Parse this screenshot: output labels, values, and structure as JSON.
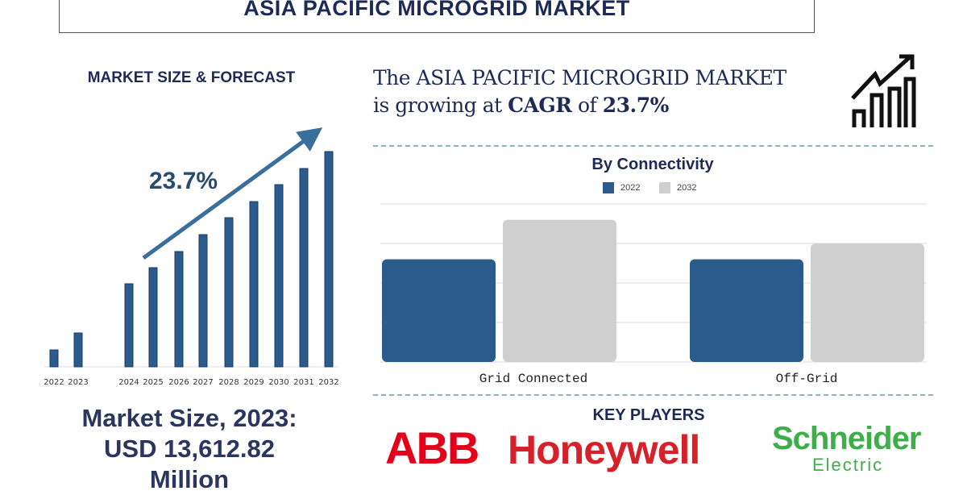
{
  "header": {
    "title": "ASIA PACIFIC MICROGRID MARKET"
  },
  "forecast": {
    "title": "MARKET SIZE & FORECAST",
    "growth_label": "23.7%"
  },
  "cagr": {
    "line1": "The ASIA PACIFIC MICROGRID MARKET",
    "prefix": "is growing at ",
    "cagr_word": "CAGR",
    "of": " of ",
    "value": "23.7%",
    "icon": "growth-chart-icon"
  },
  "market_size": {
    "line1": "Market Size, 2023:",
    "line2": "USD 13,612.82",
    "line3": "Million"
  },
  "key_players": {
    "title": "KEY PLAYERS",
    "logos": [
      "ABB",
      "Honeywell",
      "Schneider",
      "Electric"
    ]
  },
  "colors": {
    "navy": "#1d2a55",
    "bar_blue": "#2a5b8c",
    "bar_grey": "#cfcfcf",
    "abb_red": "#e2001a",
    "honeywell_red": "#d6202a",
    "schneider_green": "#3dae49"
  },
  "chart_data": [
    {
      "type": "bar",
      "title": "MARKET SIZE & FORECAST",
      "categories": [
        "2022",
        "2023",
        "2024",
        "2025",
        "2026",
        "2027",
        "2028",
        "2029",
        "2030",
        "2031",
        "2032"
      ],
      "values": [
        6806,
        13613,
        33384,
        39866,
        46348,
        53155,
        59961,
        66443,
        73250,
        79732,
        86538
      ],
      "annotation": "23.7%",
      "ylim": [
        0,
        86538
      ],
      "grid": false
    },
    {
      "type": "bar",
      "title": "By Connectivity",
      "categories": [
        "Grid Connected",
        "Off-Grid"
      ],
      "series": [
        {
          "name": "2022",
          "values": [
            2.6,
            2.6
          ]
        },
        {
          "name": "2032",
          "values": [
            3.6,
            3.0
          ]
        }
      ],
      "ylim": [
        0,
        4
      ],
      "grid": true,
      "legend": "top"
    }
  ]
}
